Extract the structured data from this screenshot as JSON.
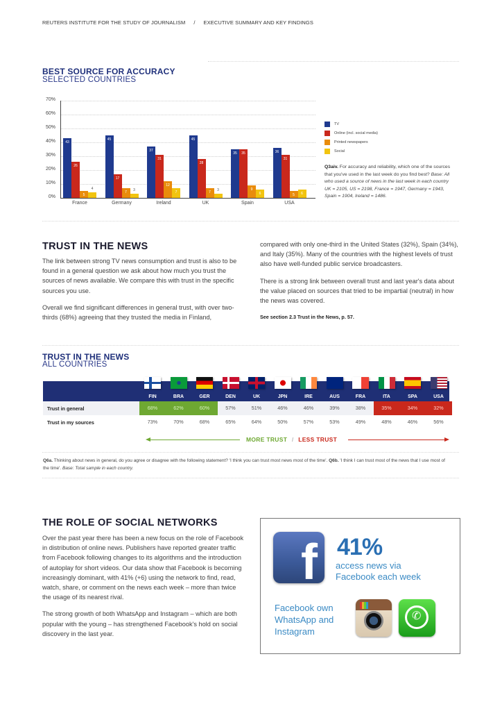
{
  "header": {
    "org": "REUTERS INSTITUTE FOR THE STUDY OF JOURNALISM",
    "separator": "/",
    "section": "EXECUTIVE SUMMARY AND KEY FINDINGS"
  },
  "accuracy": {
    "title": "BEST SOURCE FOR ACCURACY",
    "subtitle": "SELECTED COUNTRIES",
    "legend": [
      {
        "label": "TV",
        "color": "#1f3a8f"
      },
      {
        "label": "Online (incl. social media)",
        "color": "#c9281c"
      },
      {
        "label": "Printed newspapers",
        "color": "#e98c0c"
      },
      {
        "label": "Social",
        "color": "#f2c40f"
      }
    ],
    "note_bold": "Q3aiv.",
    "note_text": " For accuracy and reliability, which one of the sources that you've used in the last week do you find best? ",
    "note_italic": "Base: All who used a source of news in the last week in each country UK = 2105, US = 2198, France = 1947, Germany = 1943, Spain = 1904, Ireland = 1486."
  },
  "chart_data": {
    "type": "bar",
    "title": "BEST SOURCE FOR ACCURACY",
    "subtitle": "SELECTED COUNTRIES",
    "categories": [
      "France",
      "Germany",
      "Ireland",
      "UK",
      "Spain",
      "USA"
    ],
    "series": [
      {
        "name": "TV",
        "color": "#1f3a8f",
        "values": [
          43,
          45,
          37,
          45,
          35,
          36
        ]
      },
      {
        "name": "Online (incl. social media)",
        "color": "#c9281c",
        "values": [
          26,
          17,
          31,
          28,
          35,
          31
        ]
      },
      {
        "name": "Printed newspapers",
        "color": "#e98c0c",
        "values": [
          5,
          7,
          12,
          7,
          9,
          5
        ]
      },
      {
        "name": "Social",
        "color": "#f2c40f",
        "values": [
          4,
          3,
          7,
          3,
          6,
          6
        ]
      }
    ],
    "yticks": [
      "0%",
      "10%",
      "20%",
      "30%",
      "40%",
      "50%",
      "60%",
      "70%"
    ],
    "ylim": [
      0,
      70
    ],
    "xlabel": "",
    "ylabel": "",
    "grid": true,
    "legend_position": "right"
  },
  "trust_text": {
    "heading": "TRUST IN THE NEWS",
    "col1_p1": "The link between strong TV news consumption and trust is also to be found in a general question we ask about how much you trust the sources of news available. We compare this with trust in the specific sources you use.",
    "col1_p2": "Overall we find significant differences in general trust, with over two-thirds (68%) agreeing that they trusted the media in Finland,",
    "col2_p1": "compared with only one-third in the United States (32%), Spain (34%), and Italy (35%). Many of the countries with the highest levels of trust also have well-funded public service broadcasters.",
    "col2_p2": "There is a strong link between overall trust and last year's data about the value placed on sources that tried to be impartial (neutral) in how the news was covered.",
    "col2_ref": "See section 2.3 Trust in the News, p. 57."
  },
  "trust_table": {
    "title": "TRUST IN THE NEWS",
    "subtitle": "ALL COUNTRIES",
    "countries": [
      "FIN",
      "BRA",
      "GER",
      "DEN",
      "UK",
      "JPN",
      "IRE",
      "AUS",
      "FRA",
      "ITA",
      "SPA",
      "USA"
    ],
    "rows": [
      {
        "label": "Trust in general",
        "values": [
          "68%",
          "62%",
          "60%",
          "57%",
          "51%",
          "46%",
          "46%",
          "39%",
          "38%",
          "35%",
          "34%",
          "32%"
        ]
      },
      {
        "label": "Trust in my sources",
        "values": [
          "73%",
          "70%",
          "68%",
          "65%",
          "64%",
          "50%",
          "57%",
          "53%",
          "49%",
          "48%",
          "46%",
          "56%"
        ]
      }
    ],
    "more_trust": "MORE TRUST",
    "slash": "/",
    "less_trust": "LESS TRUST",
    "colors": {
      "header": "#1f2f75",
      "green": "#6ea832",
      "red": "#c9281c"
    },
    "note_q6a": "Q6a.",
    "note_q6a_text": " Thinking about news in general, do you agree or disagree with the following statement? 'I think you can trust most news most of the time'. ",
    "note_q6b": "Q6b.",
    "note_q6b_text": " 'I think I can trust most of the news that I use most of the time'. ",
    "note_base": "Base: Total sample in each country."
  },
  "social": {
    "heading": "THE ROLE OF SOCIAL NETWORKS",
    "p1": "Over the past year there has been a new focus on the role of Facebook in distribution of online news. Publishers have reported greater traffic from Facebook following changes to its algorithms and the introduction of autoplay for short videos. Our data show that Facebook is becoming increasingly dominant, with 41% (+6) using the network to find, read, watch, share, or comment on the news each week – more than twice the usage of its nearest rival.",
    "p2": "The strong growth of both WhatsApp and Instagram – which are both popular with the young – has strengthened Facebook's hold on social discovery in the last year.",
    "box": {
      "pct": "41%",
      "pct_desc_1": "access news via",
      "pct_desc_2": "Facebook each week",
      "own_1": "Facebook own",
      "own_2": "WhatsApp and",
      "own_3": "Instagram",
      "fb_glyph": "f",
      "wa_glyph": "✆"
    }
  }
}
